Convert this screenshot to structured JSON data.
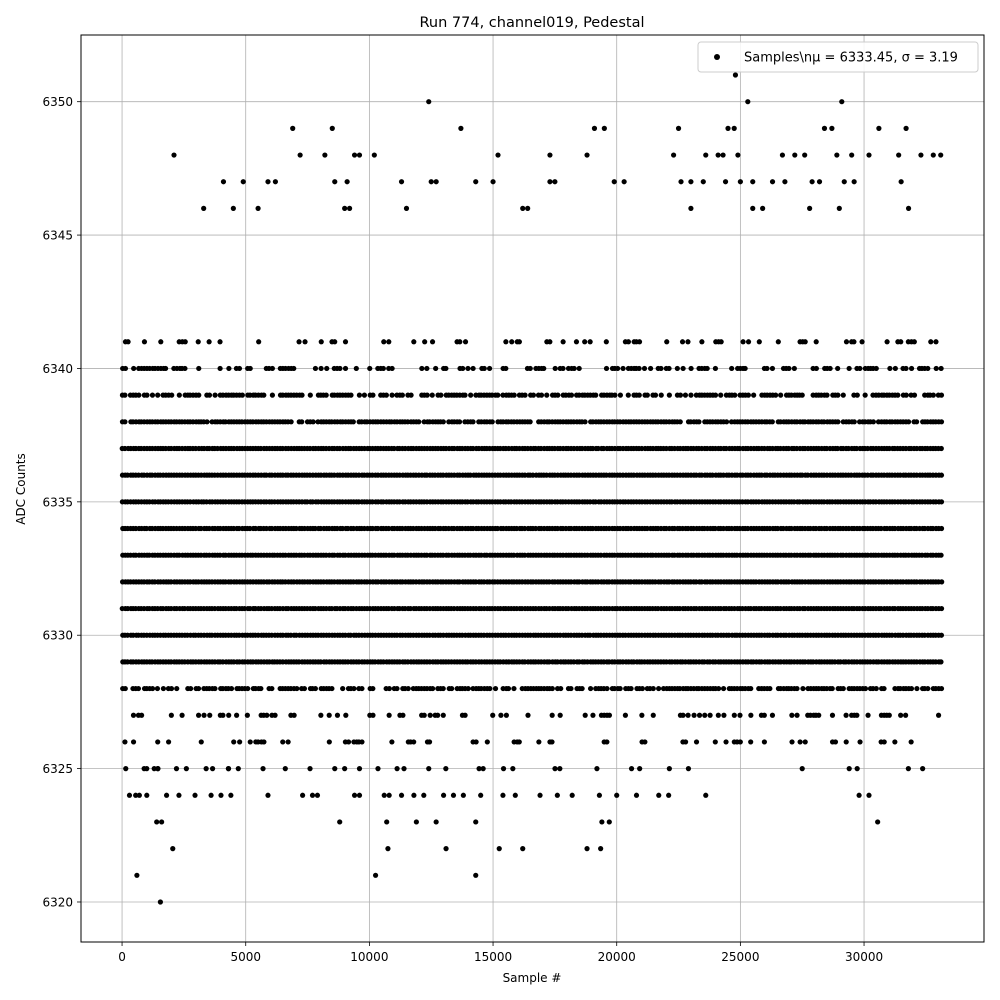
{
  "chart_data": {
    "type": "scatter",
    "title": "Run 774, channel019, Pedestal",
    "xlabel": "Sample #",
    "ylabel": "ADC Counts",
    "xlim": [
      -1660,
      34850
    ],
    "ylim": [
      6318.5,
      6352.5
    ],
    "xticks": [
      0,
      5000,
      10000,
      15000,
      20000,
      25000,
      30000
    ],
    "yticks": [
      6320,
      6325,
      6330,
      6335,
      6340,
      6345,
      6350
    ],
    "grid": true,
    "legend_position": "top-right",
    "point_color": "#000000",
    "n_samples": 33200,
    "series": [
      {
        "name": "Samples\\nμ = 6333.45, σ = 3.19",
        "legend_text": "Samples\\nμ = 6333.45, σ = 3.19",
        "levels": [
          {
            "y": 6327,
            "x_ranges": [
              [
                0,
                33200
              ]
            ],
            "density": 0.3
          },
          {
            "y": 6328,
            "x_ranges": [
              [
                0,
                33200
              ]
            ],
            "density": 0.7
          },
          {
            "y": 6329,
            "x_ranges": [
              [
                0,
                33200
              ]
            ],
            "density": 1
          },
          {
            "y": 6330,
            "x_ranges": [
              [
                0,
                33200
              ]
            ],
            "density": 1
          },
          {
            "y": 6331,
            "x_ranges": [
              [
                0,
                33200
              ]
            ],
            "density": 1
          },
          {
            "y": 6332,
            "x_ranges": [
              [
                0,
                33200
              ]
            ],
            "density": 1
          },
          {
            "y": 6333,
            "x_ranges": [
              [
                0,
                33200
              ]
            ],
            "density": 1
          },
          {
            "y": 6334,
            "x_ranges": [
              [
                0,
                33200
              ]
            ],
            "density": 1
          },
          {
            "y": 6335,
            "x_ranges": [
              [
                0,
                33200
              ]
            ],
            "density": 1
          },
          {
            "y": 6336,
            "x_ranges": [
              [
                0,
                33200
              ]
            ],
            "density": 1
          },
          {
            "y": 6337,
            "x_ranges": [
              [
                0,
                33200
              ]
            ],
            "density": 1
          },
          {
            "y": 6338,
            "x_ranges": [
              [
                0,
                33200
              ]
            ],
            "density": 0.9
          },
          {
            "y": 6339,
            "x_ranges": [
              [
                0,
                33200
              ]
            ],
            "density": 0.7
          },
          {
            "y": 6340,
            "x_ranges": [
              [
                0,
                33200
              ]
            ],
            "density": 0.45
          },
          {
            "y": 6341,
            "x_ranges": [
              [
                0,
                33200
              ]
            ],
            "density": 0.25
          },
          {
            "y": 6326,
            "x_ranges": [
              [
                0,
                33200
              ]
            ],
            "density": 0.2
          },
          {
            "y": 6325,
            "x_ranges": [
              [
                0,
                33200
              ]
            ],
            "density": 0.05
          }
        ],
        "points": [
          [
            600,
            6321
          ],
          [
            1550,
            6320
          ],
          [
            2050,
            6322
          ],
          [
            10250,
            6321
          ],
          [
            10750,
            6322
          ],
          [
            13100,
            6322
          ],
          [
            14300,
            6321
          ],
          [
            15250,
            6322
          ],
          [
            16200,
            6322
          ],
          [
            18800,
            6322
          ],
          [
            19350,
            6322
          ],
          [
            1400,
            6323
          ],
          [
            1600,
            6323
          ],
          [
            8800,
            6323
          ],
          [
            10700,
            6323
          ],
          [
            11900,
            6323
          ],
          [
            12700,
            6323
          ],
          [
            14300,
            6323
          ],
          [
            19400,
            6323
          ],
          [
            19700,
            6323
          ],
          [
            30550,
            6323
          ],
          [
            300,
            6324
          ],
          [
            550,
            6324
          ],
          [
            700,
            6324
          ],
          [
            1000,
            6324
          ],
          [
            1800,
            6324
          ],
          [
            2300,
            6324
          ],
          [
            2950,
            6324
          ],
          [
            3600,
            6324
          ],
          [
            4000,
            6324
          ],
          [
            4400,
            6324
          ],
          [
            5900,
            6324
          ],
          [
            7300,
            6324
          ],
          [
            7700,
            6324
          ],
          [
            7900,
            6324
          ],
          [
            9400,
            6324
          ],
          [
            9600,
            6324
          ],
          [
            10600,
            6324
          ],
          [
            10800,
            6324
          ],
          [
            11300,
            6324
          ],
          [
            11800,
            6324
          ],
          [
            12200,
            6324
          ],
          [
            13000,
            6324
          ],
          [
            13400,
            6324
          ],
          [
            13800,
            6324
          ],
          [
            14500,
            6324
          ],
          [
            15400,
            6324
          ],
          [
            15900,
            6324
          ],
          [
            16900,
            6324
          ],
          [
            17600,
            6324
          ],
          [
            18200,
            6324
          ],
          [
            19300,
            6324
          ],
          [
            20000,
            6324
          ],
          [
            20800,
            6324
          ],
          [
            21700,
            6324
          ],
          [
            22100,
            6324
          ],
          [
            23600,
            6324
          ],
          [
            29800,
            6324
          ],
          [
            30200,
            6324
          ],
          [
            150,
            6325
          ],
          [
            1300,
            6325
          ],
          [
            1450,
            6325
          ],
          [
            2200,
            6325
          ],
          [
            2600,
            6325
          ],
          [
            3400,
            6325
          ],
          [
            4300,
            6325
          ],
          [
            4700,
            6325
          ],
          [
            5700,
            6325
          ],
          [
            6600,
            6325
          ],
          [
            7600,
            6325
          ],
          [
            8600,
            6325
          ],
          [
            9000,
            6325
          ],
          [
            9600,
            6325
          ],
          [
            11400,
            6325
          ],
          [
            12400,
            6325
          ],
          [
            14600,
            6325
          ],
          [
            15800,
            6325
          ],
          [
            17700,
            6325
          ],
          [
            19200,
            6325
          ],
          [
            20600,
            6325
          ],
          [
            22900,
            6325
          ],
          [
            27500,
            6325
          ],
          [
            29400,
            6325
          ],
          [
            24800,
            6351
          ],
          [
            12400,
            6350
          ],
          [
            25300,
            6350
          ],
          [
            29100,
            6350
          ],
          [
            6900,
            6349
          ],
          [
            8500,
            6349
          ],
          [
            13700,
            6349
          ],
          [
            19100,
            6349
          ],
          [
            19500,
            6349
          ],
          [
            22500,
            6349
          ],
          [
            24500,
            6349
          ],
          [
            24750,
            6349
          ],
          [
            28400,
            6349
          ],
          [
            28700,
            6349
          ],
          [
            30600,
            6349
          ],
          [
            31700,
            6349
          ],
          [
            2100,
            6348
          ],
          [
            7200,
            6348
          ],
          [
            8200,
            6348
          ],
          [
            9400,
            6348
          ],
          [
            9600,
            6348
          ],
          [
            10200,
            6348
          ],
          [
            15200,
            6348
          ],
          [
            17300,
            6348
          ],
          [
            18800,
            6348
          ],
          [
            22300,
            6348
          ],
          [
            23600,
            6348
          ],
          [
            24100,
            6348
          ],
          [
            24300,
            6348
          ],
          [
            24900,
            6348
          ],
          [
            26700,
            6348
          ],
          [
            27200,
            6348
          ],
          [
            27600,
            6348
          ],
          [
            28900,
            6348
          ],
          [
            29500,
            6348
          ],
          [
            30200,
            6348
          ],
          [
            31400,
            6348
          ],
          [
            32300,
            6348
          ],
          [
            32800,
            6348
          ],
          [
            33100,
            6348
          ],
          [
            4100,
            6347
          ],
          [
            4900,
            6347
          ],
          [
            5900,
            6347
          ],
          [
            6200,
            6347
          ],
          [
            8600,
            6347
          ],
          [
            9100,
            6347
          ],
          [
            11300,
            6347
          ],
          [
            12500,
            6347
          ],
          [
            12700,
            6347
          ],
          [
            14300,
            6347
          ],
          [
            15000,
            6347
          ],
          [
            17300,
            6347
          ],
          [
            17500,
            6347
          ],
          [
            19900,
            6347
          ],
          [
            20300,
            6347
          ],
          [
            22600,
            6347
          ],
          [
            23000,
            6347
          ],
          [
            23500,
            6347
          ],
          [
            24400,
            6347
          ],
          [
            25000,
            6347
          ],
          [
            25500,
            6347
          ],
          [
            26300,
            6347
          ],
          [
            26800,
            6347
          ],
          [
            27900,
            6347
          ],
          [
            28200,
            6347
          ],
          [
            29200,
            6347
          ],
          [
            29600,
            6347
          ],
          [
            31500,
            6347
          ],
          [
            3300,
            6346
          ],
          [
            4500,
            6346
          ],
          [
            5500,
            6346
          ],
          [
            9000,
            6346
          ],
          [
            9200,
            6346
          ],
          [
            11500,
            6346
          ],
          [
            16200,
            6346
          ],
          [
            16400,
            6346
          ],
          [
            23000,
            6346
          ],
          [
            25500,
            6346
          ],
          [
            25900,
            6346
          ],
          [
            27800,
            6346
          ],
          [
            29000,
            6346
          ],
          [
            31800,
            6346
          ]
        ]
      }
    ]
  }
}
